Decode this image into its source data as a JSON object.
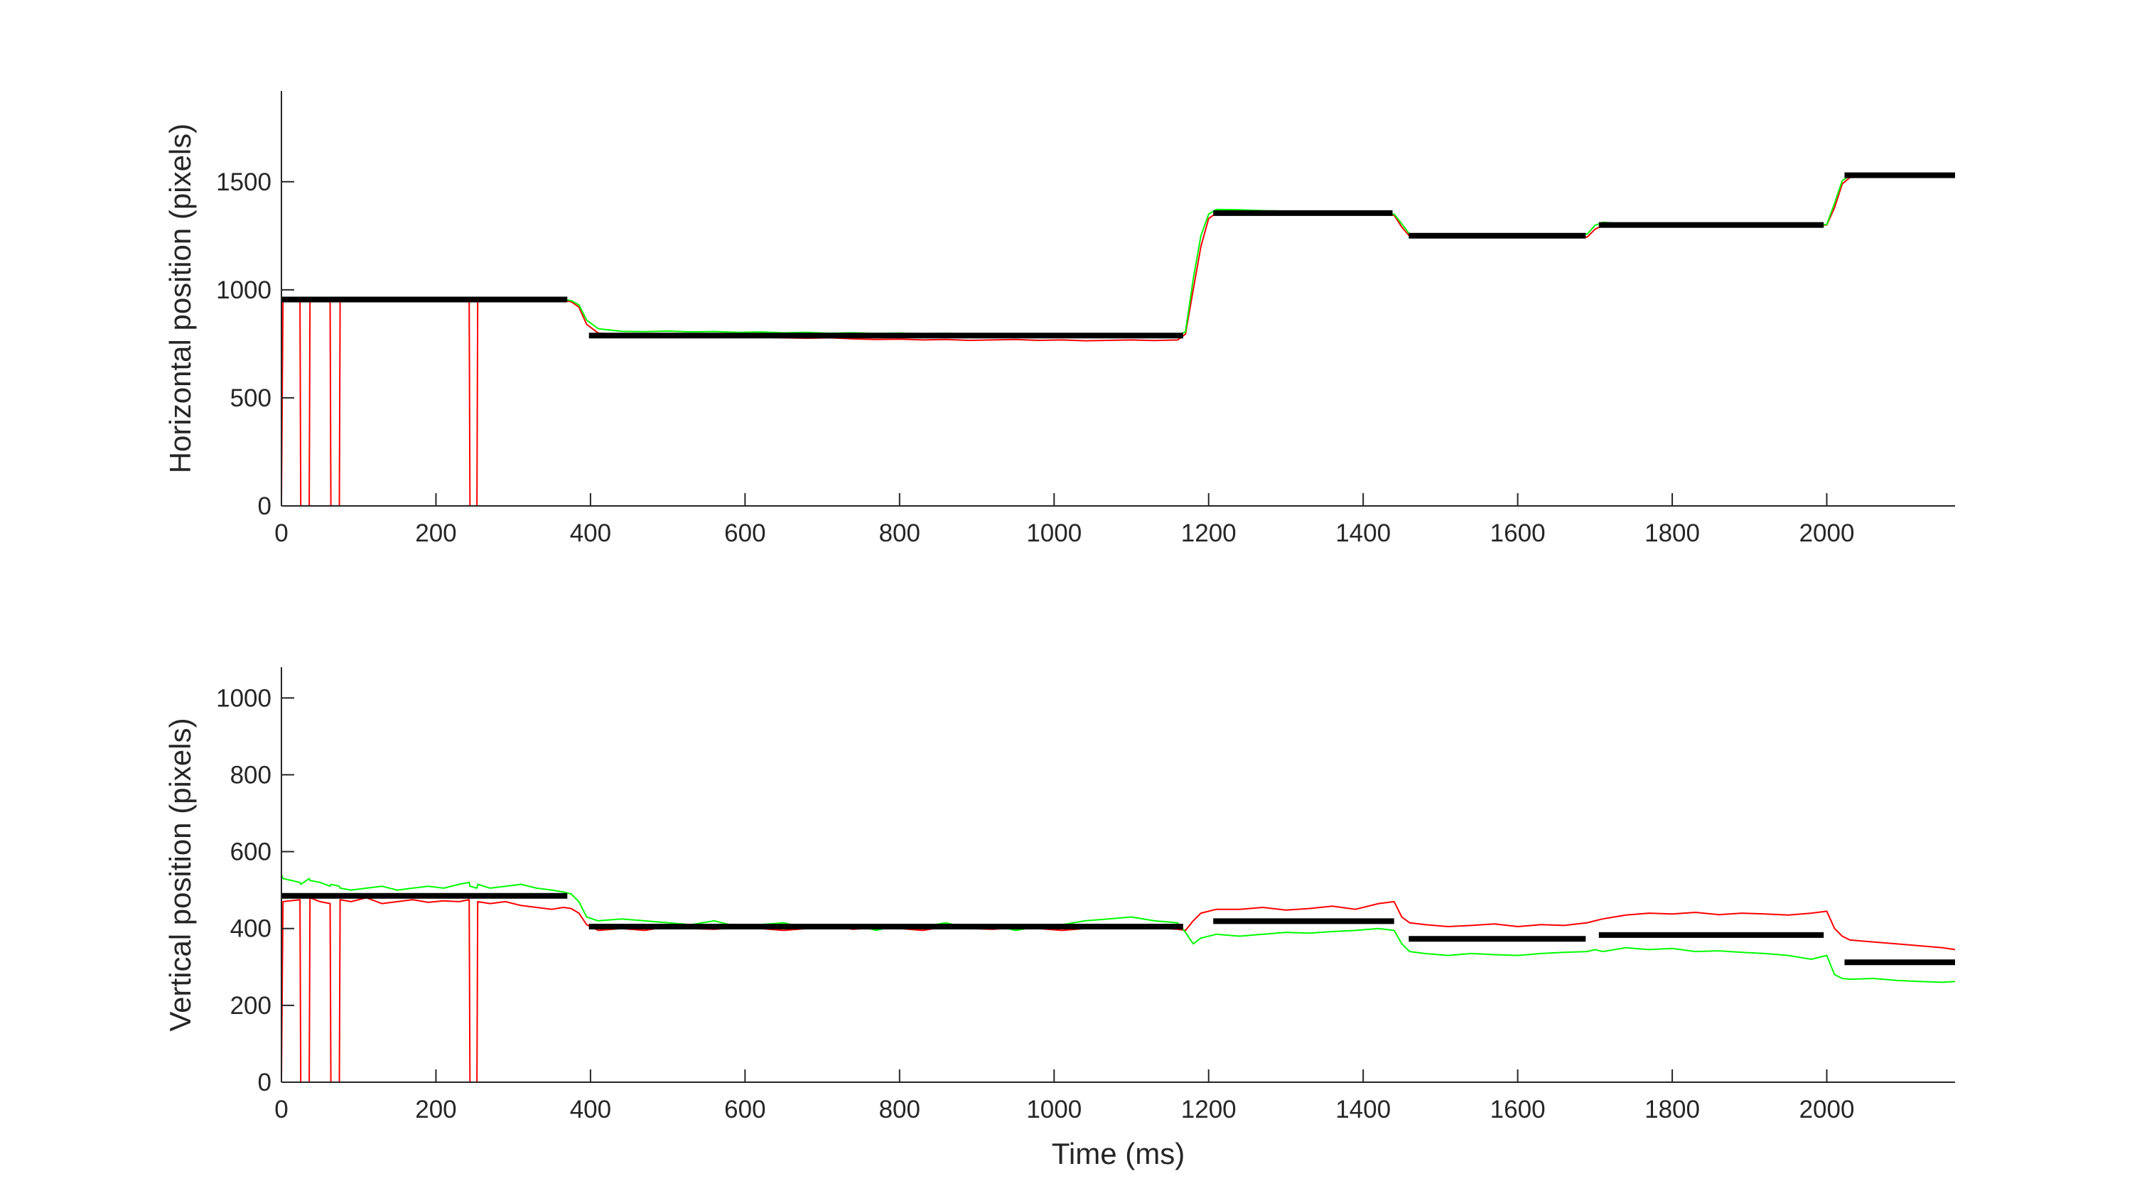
{
  "chart_data": [
    {
      "type": "line",
      "ylabel": "Horizontal position (pixels)",
      "x": [
        0,
        2,
        24,
        25,
        36,
        37,
        50,
        63,
        64,
        75,
        76,
        90,
        110,
        130,
        150,
        170,
        190,
        210,
        230,
        243,
        244,
        253,
        254,
        270,
        290,
        310,
        330,
        350,
        365,
        375,
        385,
        395,
        410,
        440,
        470,
        500,
        530,
        560,
        590,
        620,
        650,
        680,
        710,
        740,
        770,
        800,
        830,
        860,
        890,
        920,
        950,
        980,
        1010,
        1040,
        1070,
        1100,
        1130,
        1160,
        1170,
        1180,
        1190,
        1200,
        1210,
        1240,
        1270,
        1300,
        1330,
        1360,
        1390,
        1420,
        1440,
        1450,
        1460,
        1480,
        1510,
        1540,
        1570,
        1600,
        1630,
        1660,
        1690,
        1700,
        1710,
        1740,
        1770,
        1800,
        1830,
        1860,
        1890,
        1920,
        1950,
        1980,
        2000,
        2010,
        2020,
        2030,
        2060,
        2090,
        2120,
        2150,
        2166
      ],
      "xlim": [
        0,
        2166
      ],
      "xticks": [
        0,
        200,
        400,
        600,
        800,
        1000,
        1200,
        1400,
        1600,
        1800,
        2000
      ],
      "ylim": [
        0,
        1920
      ],
      "yticks": [
        0,
        500,
        1000,
        1500
      ],
      "series": [
        {
          "color": "#ff0000",
          "values": [
            0,
            950,
            950,
            0,
            0,
            950,
            952,
            948,
            0,
            0,
            950,
            948,
            953,
            950,
            955,
            948,
            952,
            950,
            953,
            950,
            0,
            0,
            950,
            952,
            950,
            955,
            950,
            952,
            950,
            945,
            920,
            840,
            800,
            790,
            788,
            785,
            784,
            786,
            782,
            780,
            778,
            776,
            778,
            773,
            770,
            772,
            768,
            770,
            766,
            768,
            770,
            766,
            768,
            764,
            766,
            768,
            765,
            768,
            795,
            1000,
            1200,
            1330,
            1355,
            1355,
            1352,
            1358,
            1350,
            1355,
            1352,
            1350,
            1345,
            1290,
            1248,
            1245,
            1242,
            1246,
            1244,
            1242,
            1244,
            1246,
            1244,
            1280,
            1298,
            1298,
            1300,
            1296,
            1298,
            1300,
            1296,
            1298,
            1300,
            1298,
            1300,
            1380,
            1490,
            1520,
            1528,
            1532,
            1528,
            1530,
            1528
          ]
        },
        {
          "color": "#00ff00",
          "values": [
            950,
            955,
            960,
            962,
            960,
            958,
            962,
            960,
            958,
            955,
            958,
            954,
            956,
            955,
            958,
            954,
            956,
            954,
            956,
            955,
            954,
            955,
            955,
            954,
            956,
            955,
            954,
            956,
            955,
            950,
            930,
            860,
            820,
            808,
            806,
            809,
            805,
            807,
            803,
            805,
            801,
            803,
            799,
            801,
            798,
            800,
            797,
            799,
            795,
            797,
            793,
            795,
            791,
            793,
            789,
            791,
            788,
            790,
            805,
            1050,
            1250,
            1350,
            1372,
            1370,
            1366,
            1364,
            1360,
            1358,
            1356,
            1354,
            1350,
            1305,
            1258,
            1252,
            1250,
            1252,
            1254,
            1250,
            1252,
            1254,
            1258,
            1298,
            1312,
            1306,
            1304,
            1302,
            1300,
            1302,
            1298,
            1300,
            1298,
            1296,
            1302,
            1400,
            1505,
            1528,
            1532,
            1534,
            1530,
            1532,
            1530
          ]
        },
        {
          "color": "#000000",
          "x": [
            0,
            370,
            385,
            398,
            1167,
            1186,
            1206,
            1438,
            1448,
            1459,
            1688,
            1696,
            1705,
            1996,
            2010,
            2023,
            2166
          ],
          "values": [
            955,
            955,
            null,
            788,
            788,
            null,
            1355,
            1355,
            null,
            1250,
            1250,
            null,
            1300,
            1300,
            null,
            1530,
            1530
          ]
        }
      ]
    },
    {
      "type": "line",
      "ylabel": "Vertical position (pixels)",
      "xlabel": "Time (ms)",
      "x": [
        0,
        2,
        24,
        25,
        36,
        37,
        50,
        63,
        64,
        75,
        76,
        90,
        110,
        130,
        150,
        170,
        190,
        210,
        230,
        243,
        244,
        253,
        254,
        270,
        290,
        310,
        330,
        350,
        365,
        375,
        385,
        395,
        410,
        440,
        470,
        500,
        530,
        560,
        590,
        620,
        650,
        680,
        710,
        740,
        770,
        800,
        830,
        860,
        890,
        920,
        950,
        980,
        1010,
        1040,
        1070,
        1100,
        1130,
        1160,
        1170,
        1180,
        1190,
        1200,
        1210,
        1240,
        1270,
        1300,
        1330,
        1360,
        1390,
        1420,
        1440,
        1450,
        1460,
        1480,
        1510,
        1540,
        1570,
        1600,
        1630,
        1660,
        1690,
        1700,
        1710,
        1740,
        1770,
        1800,
        1830,
        1860,
        1890,
        1920,
        1950,
        1980,
        2000,
        2010,
        2020,
        2030,
        2060,
        2090,
        2120,
        2150,
        2166
      ],
      "xlim": [
        0,
        2166
      ],
      "xticks": [
        0,
        200,
        400,
        600,
        800,
        1000,
        1200,
        1400,
        1600,
        1800,
        2000
      ],
      "ylim": [
        0,
        1080
      ],
      "yticks": [
        0,
        200,
        400,
        600,
        800,
        1000
      ],
      "series": [
        {
          "color": "#ff0000",
          "values": [
            0,
            470,
            475,
            0,
            0,
            480,
            470,
            465,
            0,
            0,
            475,
            470,
            480,
            465,
            470,
            475,
            468,
            472,
            470,
            475,
            0,
            0,
            470,
            465,
            470,
            460,
            455,
            450,
            455,
            452,
            440,
            410,
            395,
            400,
            395,
            405,
            400,
            398,
            402,
            400,
            395,
            400,
            405,
            398,
            402,
            400,
            395,
            405,
            400,
            398,
            402,
            400,
            395,
            400,
            405,
            400,
            402,
            398,
            395,
            420,
            440,
            445,
            450,
            450,
            455,
            448,
            452,
            458,
            450,
            465,
            470,
            430,
            415,
            410,
            405,
            408,
            412,
            405,
            410,
            408,
            415,
            420,
            425,
            435,
            440,
            438,
            442,
            436,
            440,
            438,
            435,
            440,
            445,
            400,
            380,
            370,
            365,
            360,
            355,
            350,
            345
          ]
        },
        {
          "color": "#00ff00",
          "values": [
            540,
            530,
            520,
            515,
            530,
            525,
            520,
            510,
            515,
            510,
            505,
            500,
            505,
            510,
            500,
            505,
            510,
            505,
            515,
            520,
            510,
            505,
            515,
            505,
            510,
            515,
            505,
            500,
            495,
            490,
            470,
            430,
            420,
            425,
            420,
            415,
            410,
            420,
            405,
            410,
            415,
            400,
            405,
            410,
            395,
            410,
            405,
            415,
            400,
            410,
            395,
            405,
            410,
            420,
            425,
            430,
            420,
            415,
            390,
            360,
            375,
            380,
            385,
            380,
            385,
            390,
            388,
            392,
            395,
            400,
            395,
            360,
            340,
            335,
            330,
            335,
            332,
            330,
            335,
            338,
            340,
            345,
            340,
            350,
            345,
            348,
            340,
            342,
            338,
            335,
            330,
            320,
            330,
            280,
            270,
            268,
            270,
            265,
            262,
            260,
            262
          ]
        },
        {
          "color": "#000000",
          "x": [
            0,
            370,
            385,
            398,
            1167,
            1186,
            1206,
            1440,
            1450,
            1459,
            1688,
            1696,
            1705,
            1996,
            2010,
            2023,
            2166
          ],
          "values": [
            485,
            485,
            null,
            405,
            405,
            null,
            419,
            419,
            null,
            373,
            373,
            null,
            383,
            383,
            null,
            312,
            312
          ]
        }
      ]
    }
  ]
}
